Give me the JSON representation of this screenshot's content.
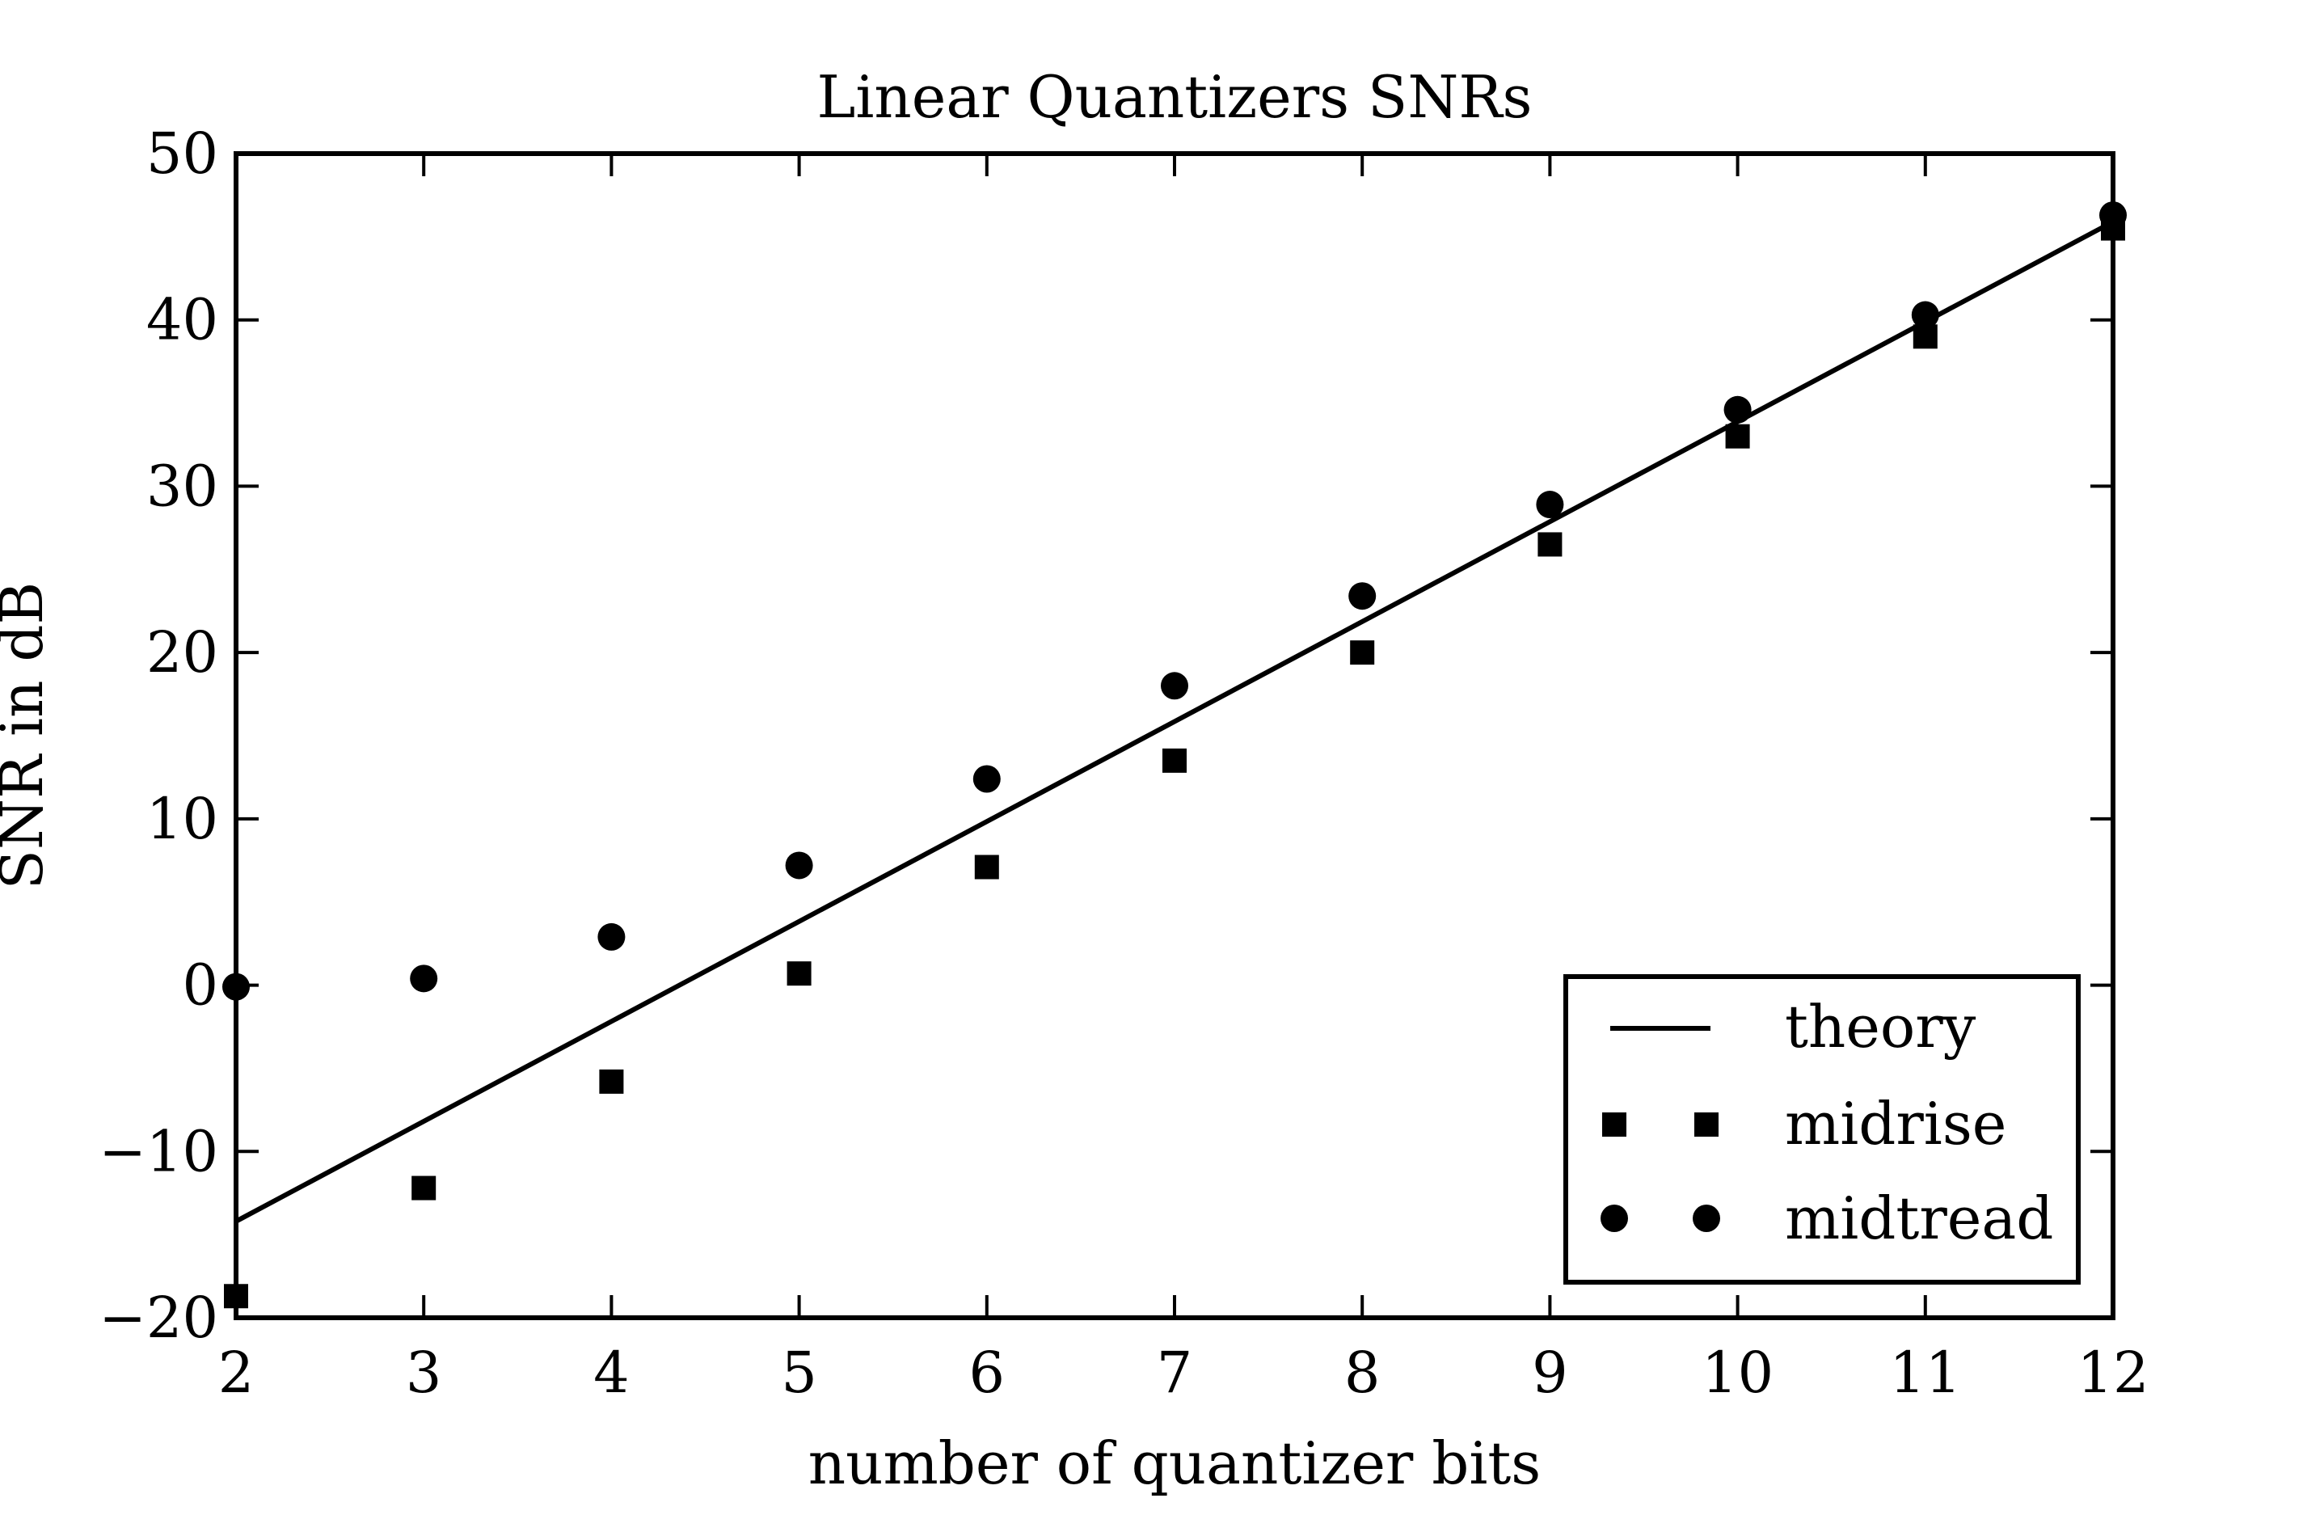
{
  "chart_data": {
    "type": "scatter",
    "title": "Linear Quantizers SNRs",
    "xlabel": "number of quantizer bits",
    "ylabel": "SNR in dB",
    "xlim": [
      2,
      12
    ],
    "ylim": [
      -20,
      50
    ],
    "xticks": [
      2,
      3,
      4,
      5,
      6,
      7,
      8,
      9,
      10,
      11,
      12
    ],
    "yticks": [
      -20,
      -10,
      0,
      10,
      20,
      30,
      40,
      50
    ],
    "ytick_labels": [
      "−20",
      "−10",
      "0",
      "10",
      "20",
      "30",
      "40",
      "50"
    ],
    "xtick_labels": [
      "2",
      "3",
      "4",
      "5",
      "6",
      "7",
      "8",
      "9",
      "10",
      "11",
      "12"
    ],
    "grid": false,
    "legend_position": "lower-right",
    "series": [
      {
        "name": "theory",
        "kind": "line",
        "marker": "none",
        "x": [
          2,
          12
        ],
        "y": [
          -14.2,
          45.9
        ]
      },
      {
        "name": "midrise",
        "kind": "scatter",
        "marker": "square",
        "x": [
          2,
          3,
          4,
          5,
          6,
          7,
          8,
          9,
          10,
          11,
          12
        ],
        "y": [
          -18.7,
          -12.2,
          -5.8,
          0.7,
          7.1,
          13.5,
          20.0,
          26.5,
          33.0,
          39.0,
          45.5
        ]
      },
      {
        "name": "midtread",
        "kind": "scatter",
        "marker": "circle",
        "x": [
          2,
          3,
          4,
          5,
          6,
          7,
          8,
          9,
          10,
          11,
          12
        ],
        "y": [
          -0.1,
          0.4,
          2.9,
          7.2,
          12.4,
          18.0,
          23.4,
          28.9,
          34.6,
          40.3,
          46.3
        ]
      }
    ],
    "colors": {
      "ink": "#000000",
      "background": "#ffffff"
    }
  }
}
